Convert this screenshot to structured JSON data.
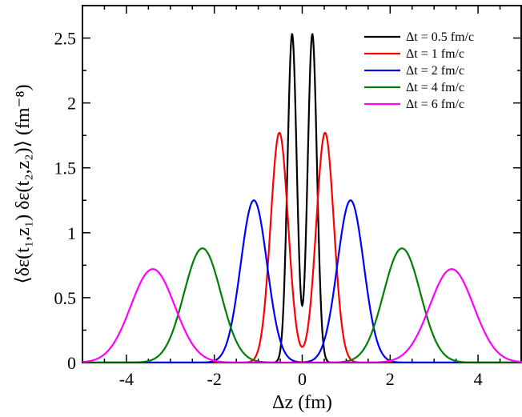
{
  "chart_data": {
    "type": "line",
    "xlabel": "Δz  (fm)",
    "ylabel": "⟨δε(t₁,z₁) δε(t₂,z₂)⟩  (fm⁻⁸)",
    "xlim": [
      -5,
      5
    ],
    "ylim": [
      0,
      2.75
    ],
    "x_ticks": [
      -4,
      -2,
      0,
      2,
      4
    ],
    "x_tick_labels": [
      "-4",
      "-2",
      "0",
      "2",
      "4"
    ],
    "y_ticks": [
      0,
      0.5,
      1,
      1.5,
      2,
      2.5
    ],
    "y_tick_labels": [
      "0",
      "0.5",
      "1",
      "1.5",
      "2",
      "2.5"
    ],
    "grid": false,
    "legend_position": "top-right",
    "series": [
      {
        "name": "Δt = 0.5 fm/c",
        "color": "#000000",
        "peak_x": 0.23,
        "peak_y": 2.53,
        "center_y": 0.44,
        "width": 0.105
      },
      {
        "name": "Δt = 1 fm/c",
        "color": "#ff0000",
        "peak_x": 0.52,
        "peak_y": 1.77,
        "width": 0.2
      },
      {
        "name": "Δt = 2 fm/c",
        "color": "#0000ff",
        "peak_x": 1.1,
        "peak_y": 1.25,
        "width": 0.3
      },
      {
        "name": "Δt = 4 fm/c",
        "color": "#008000",
        "peak_x": 2.27,
        "peak_y": 0.88,
        "width": 0.42
      },
      {
        "name": "Δt = 6 fm/c",
        "color": "#ff00ff",
        "peak_x": 3.4,
        "peak_y": 0.72,
        "width": 0.5
      }
    ]
  }
}
